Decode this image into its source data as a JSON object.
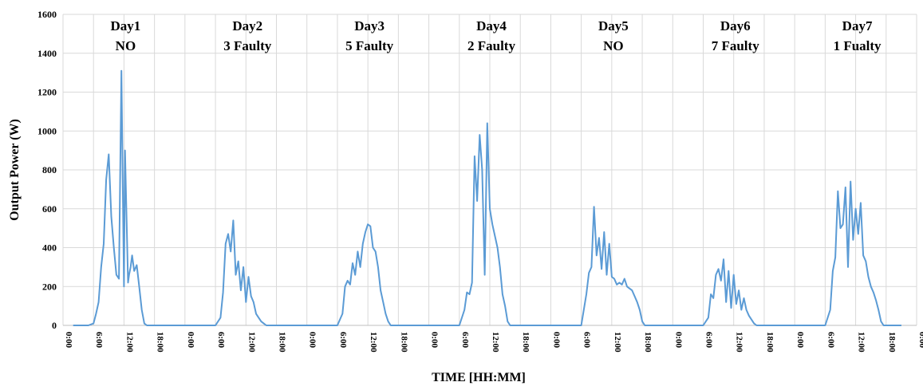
{
  "chart_data": {
    "type": "line",
    "xlabel": "TIME [HH:MM]",
    "ylabel": "Output Power (W)",
    "ylim": [
      0,
      1600
    ],
    "yticks": [
      0,
      200,
      400,
      600,
      800,
      1000,
      1200,
      1400,
      1600
    ],
    "xticks": [
      "0:00",
      "6:00",
      "12:00",
      "18:00",
      "0:00",
      "6:00",
      "12:00",
      "18:00",
      "0:00",
      "6:00",
      "12:00",
      "18:00",
      "0:00",
      "6:00",
      "12:00",
      "18:00",
      "0:00",
      "6:00",
      "12:00",
      "18:00",
      "0:00",
      "6:00",
      "12:00",
      "18:00",
      "0:00",
      "6:00",
      "12:00",
      "18:00",
      "0:00"
    ],
    "xlim_hours": [
      0,
      168
    ],
    "grid": true,
    "line_color": "#5b9bd5",
    "annotations": [
      {
        "line1": "Day1",
        "line2": "NO"
      },
      {
        "line1": "Day2",
        "line2": "3 Faulty"
      },
      {
        "line1": "Day3",
        "line2": "5 Faulty"
      },
      {
        "line1": "Day4",
        "line2": "2 Faulty"
      },
      {
        "line1": "Day5",
        "line2": "NO"
      },
      {
        "line1": "Day6",
        "line2": "7 Faulty"
      },
      {
        "line1": "Day7",
        "line2": "1 Fualty"
      }
    ],
    "series": [
      {
        "x": [
          2,
          5,
          6,
          6.5,
          7,
          7.5,
          8,
          8.5,
          9,
          9.5,
          10,
          10.5,
          11,
          11.5,
          12,
          12.2,
          12.5,
          12.8,
          13,
          13.3,
          13.6,
          14,
          14.5,
          15,
          15.5,
          16,
          16.5,
          17,
          17.5,
          18,
          18.5,
          19,
          24,
          30,
          31,
          31.5,
          32,
          32.5,
          33,
          33.5,
          34,
          34.5,
          35,
          35.5,
          36,
          36.5,
          37,
          37.5,
          38,
          38.5,
          39,
          39.5,
          40,
          40.5,
          41,
          41.5,
          42,
          42.5,
          43,
          48,
          54,
          55,
          55.5,
          56,
          56.5,
          57,
          57.5,
          58,
          58.5,
          59,
          59.5,
          60,
          60.5,
          61,
          61.5,
          62,
          62.5,
          63,
          63.5,
          64,
          64.5,
          65,
          65.5,
          66,
          66.5,
          67,
          72,
          78,
          79,
          79.5,
          80,
          80.5,
          81,
          81.5,
          82,
          82.5,
          83,
          83.5,
          84,
          84.5,
          85,
          85.5,
          86,
          86.5,
          87,
          87.5,
          88,
          88.5,
          89,
          89.5,
          90,
          90.5,
          91,
          96,
          102,
          103,
          103.5,
          104,
          104.5,
          105,
          105.5,
          106,
          106.5,
          107,
          107.5,
          108,
          108.5,
          109,
          109.5,
          110,
          110.5,
          111,
          111.5,
          112,
          112.5,
          113,
          113.5,
          114,
          114.5,
          115,
          120,
          126,
          127,
          127.5,
          128,
          128.5,
          129,
          129.5,
          130,
          130.5,
          131,
          131.5,
          132,
          132.5,
          133,
          133.5,
          134,
          134.5,
          135,
          135.5,
          136,
          136.5,
          137,
          137.5,
          138,
          138.5,
          139,
          144,
          150,
          151,
          151.5,
          152,
          152.5,
          153,
          153.5,
          154,
          154.5,
          155,
          155.5,
          156,
          156.5,
          157,
          157.5,
          158,
          158.5,
          159,
          159.5,
          160,
          160.5,
          161,
          161.5,
          162,
          162.5,
          163,
          165
        ],
        "y": [
          0,
          0,
          10,
          60,
          120,
          300,
          420,
          750,
          880,
          560,
          400,
          260,
          240,
          1310,
          200,
          900,
          560,
          220,
          260,
          300,
          360,
          280,
          310,
          200,
          80,
          10,
          0,
          0,
          0,
          0,
          0,
          0,
          0,
          0,
          40,
          170,
          420,
          470,
          380,
          540,
          260,
          330,
          180,
          300,
          120,
          250,
          150,
          120,
          60,
          40,
          20,
          10,
          0,
          0,
          0,
          0,
          0,
          0,
          0,
          0,
          0,
          60,
          200,
          230,
          210,
          320,
          260,
          380,
          300,
          420,
          480,
          520,
          510,
          400,
          380,
          300,
          180,
          120,
          60,
          20,
          0,
          0,
          0,
          0,
          0,
          0,
          0,
          0,
          80,
          170,
          160,
          220,
          870,
          640,
          980,
          800,
          260,
          1040,
          600,
          520,
          460,
          400,
          300,
          160,
          100,
          20,
          0,
          0,
          0,
          0,
          0,
          0,
          0,
          0,
          0,
          160,
          270,
          300,
          610,
          360,
          450,
          290,
          480,
          260,
          420,
          250,
          240,
          210,
          220,
          210,
          240,
          200,
          190,
          180,
          150,
          120,
          80,
          20,
          0,
          0,
          0,
          0,
          40,
          160,
          140,
          260,
          290,
          230,
          340,
          120,
          280,
          90,
          260,
          110,
          180,
          80,
          140,
          80,
          50,
          30,
          10,
          0,
          0,
          0,
          0,
          0,
          0,
          0,
          0,
          80,
          280,
          350,
          690,
          500,
          520,
          710,
          300,
          740,
          440,
          600,
          470,
          630,
          360,
          330,
          250,
          200,
          170,
          130,
          80,
          20,
          0,
          0,
          0,
          0,
          0
        ]
      }
    ]
  }
}
